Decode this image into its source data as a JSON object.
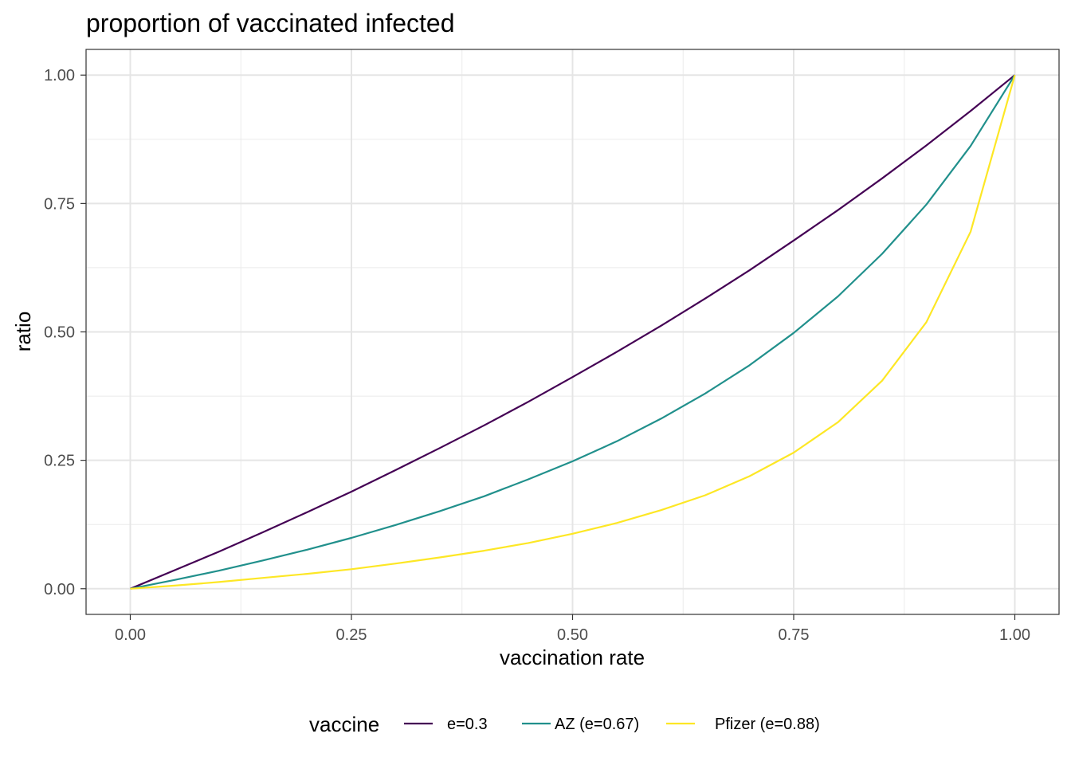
{
  "chart_data": {
    "type": "line",
    "title": "proportion of vaccinated infected",
    "xlabel": "vaccination rate",
    "ylabel": "ratio",
    "xlim": [
      -0.05,
      1.05
    ],
    "ylim": [
      -0.05,
      1.05
    ],
    "x_ticks": [
      "0.00",
      "0.25",
      "0.50",
      "0.75",
      "1.00"
    ],
    "y_ticks": [
      "0.00",
      "0.25",
      "0.50",
      "0.75",
      "1.00"
    ],
    "grid": true,
    "legend": {
      "title": "vaccine",
      "placement": "bottom"
    },
    "x": [
      0,
      0.05,
      0.1,
      0.15,
      0.2,
      0.25,
      0.3,
      0.35,
      0.4,
      0.45,
      0.5,
      0.55,
      0.6,
      0.65,
      0.7,
      0.75,
      0.8,
      0.85,
      0.9,
      0.95,
      1.0
    ],
    "series": [
      {
        "name": "e=0.3",
        "color": "#440154",
        "values": [
          0,
          0.036,
          0.072,
          0.11,
          0.149,
          0.189,
          0.231,
          0.274,
          0.318,
          0.364,
          0.412,
          0.461,
          0.512,
          0.565,
          0.62,
          0.678,
          0.737,
          0.799,
          0.863,
          0.93,
          1.0
        ]
      },
      {
        "name": "AZ (e=0.67)",
        "color": "#21908C",
        "values": [
          0,
          0.017,
          0.035,
          0.055,
          0.076,
          0.099,
          0.124,
          0.151,
          0.18,
          0.213,
          0.248,
          0.287,
          0.331,
          0.38,
          0.435,
          0.498,
          0.569,
          0.652,
          0.748,
          0.862,
          1.0
        ]
      },
      {
        "name": "Pfizer (e=0.88)",
        "color": "#FDE725",
        "values": [
          0,
          0.006,
          0.013,
          0.021,
          0.029,
          0.038,
          0.049,
          0.061,
          0.074,
          0.089,
          0.107,
          0.128,
          0.153,
          0.182,
          0.219,
          0.265,
          0.324,
          0.405,
          0.519,
          0.695,
          1.0
        ]
      }
    ]
  }
}
